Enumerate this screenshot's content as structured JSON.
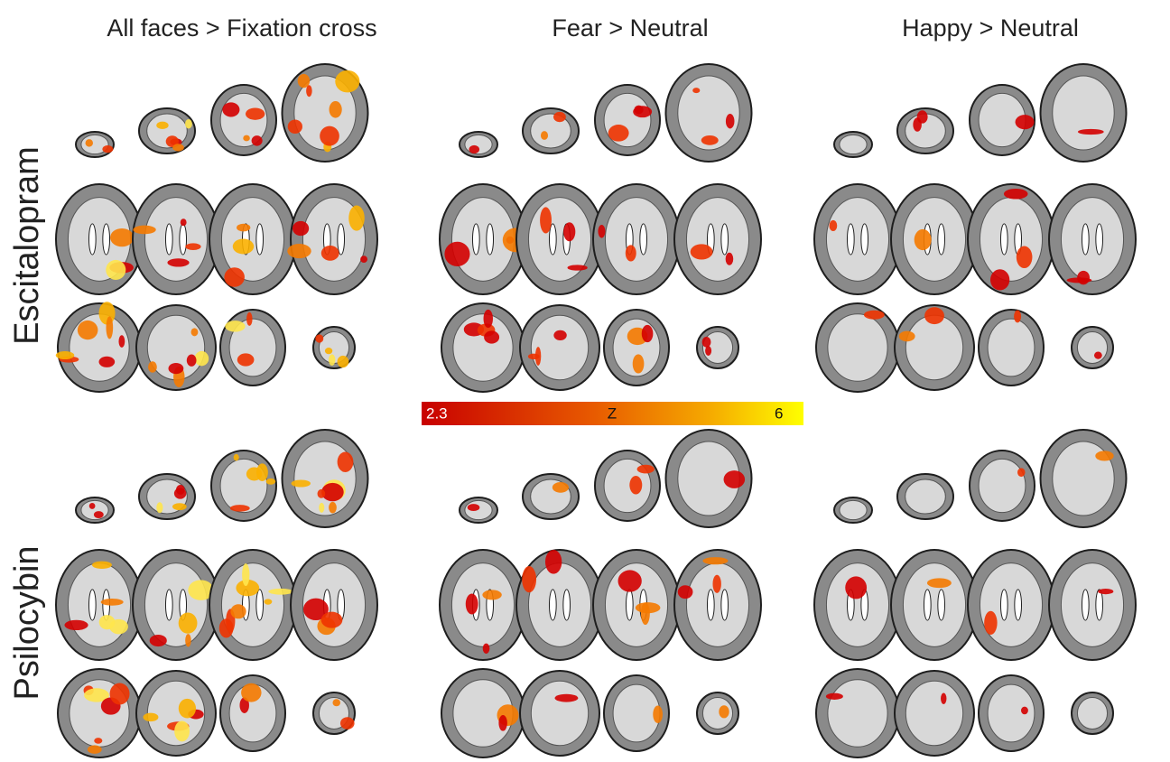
{
  "columns": [
    "All faces > Fixation cross",
    "Fear > Neutral",
    "Happy > Neutral"
  ],
  "rows": [
    "Escitalopram",
    "Psilocybin"
  ],
  "colorbar": {
    "label": "Z",
    "min": 2.3,
    "max": 6
  }
}
